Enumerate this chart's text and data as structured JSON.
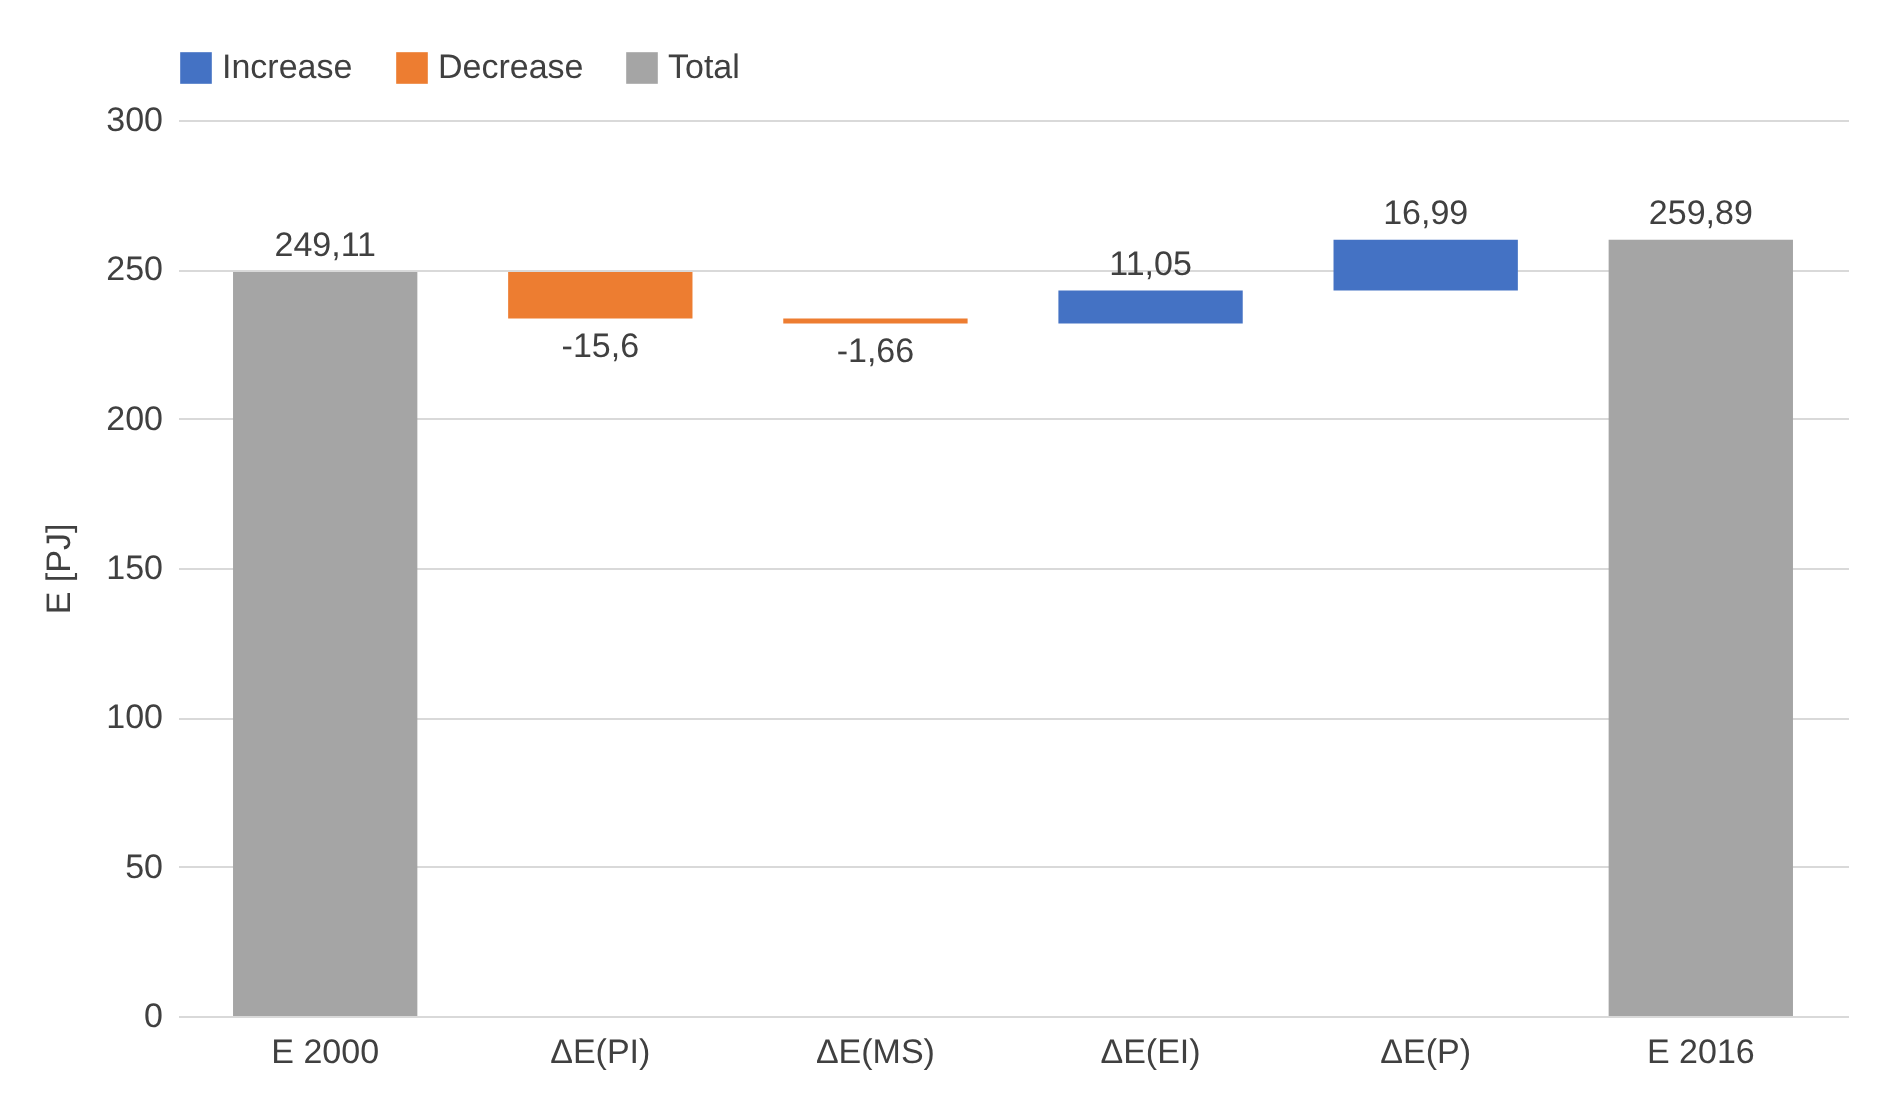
{
  "chart_data": {
    "type": "bar",
    "ylabel": "E [PJ]",
    "categories": [
      "E 2000",
      "ΔE(PI)",
      "ΔE(MS)",
      "ΔE(EI)",
      "ΔE(P)",
      "E 2016"
    ],
    "series": [
      {
        "name": "Increase",
        "color": "#4472c4",
        "values": [
          null,
          null,
          null,
          11.05,
          16.99,
          null
        ],
        "base": [
          null,
          null,
          null,
          231.85,
          242.9,
          null
        ],
        "value_labels": [
          null,
          null,
          null,
          "11,05",
          "16,99",
          null
        ]
      },
      {
        "name": "Decrease",
        "color": "#ed7d31",
        "values": [
          null,
          -15.6,
          -1.66,
          null,
          null,
          null
        ],
        "base": [
          null,
          249.11,
          233.51,
          null,
          null,
          null
        ],
        "value_labels": [
          null,
          "-15,6",
          "-1,66",
          null,
          null,
          null
        ]
      },
      {
        "name": "Total",
        "color": "#a5a5a5",
        "values": [
          249.11,
          null,
          null,
          null,
          null,
          259.89
        ],
        "base": [
          0,
          null,
          null,
          null,
          null,
          0
        ],
        "value_labels": [
          "249,11",
          null,
          null,
          null,
          null,
          "259,89"
        ]
      }
    ],
    "ylim": [
      0,
      300
    ],
    "yticks": [
      0,
      50,
      100,
      150,
      200,
      250,
      300
    ],
    "grid": "y",
    "legend": "top"
  }
}
